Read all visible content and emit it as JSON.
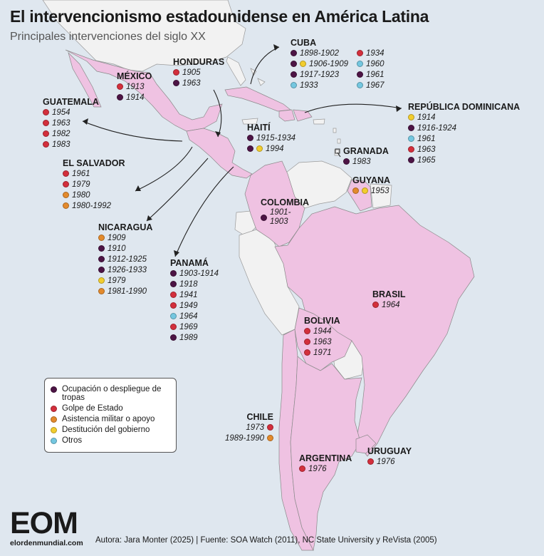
{
  "title": "El intervencionismo estadounidense en América Latina",
  "subtitle": "Principales intervenciones del siglo XX",
  "colors": {
    "ocupacion": "#4d1445",
    "golpe": "#d32f3c",
    "asistencia": "#e38a2c",
    "destitucion": "#f2cd2e",
    "otros": "#74c7e0",
    "land_focus": "#efc2e2",
    "land_other": "#f2f2f2",
    "water": "#dfe7ef"
  },
  "legend": {
    "items": [
      {
        "type": "ocupacion",
        "label": "Ocupación o despliegue de tropas"
      },
      {
        "type": "golpe",
        "label": "Golpe de Estado"
      },
      {
        "type": "asistencia",
        "label": "Asistencia militar o apoyo"
      },
      {
        "type": "destitucion",
        "label": "Destitución del gobierno"
      },
      {
        "type": "otros",
        "label": "Otros"
      }
    ]
  },
  "countries": {
    "mexico": {
      "name": "MÉXICO",
      "events": [
        {
          "t": "1913",
          "type": "golpe"
        },
        {
          "t": "1914",
          "type": "ocupacion"
        }
      ]
    },
    "honduras": {
      "name": "HONDURAS",
      "events": [
        {
          "t": "1905",
          "type": "golpe"
        },
        {
          "t": "1963",
          "type": "ocupacion"
        }
      ]
    },
    "cuba": {
      "name": "CUBA",
      "col1": [
        {
          "t": "1898-1902",
          "type": "ocupacion"
        },
        {
          "t": "1906-1909",
          "types": [
            "ocupacion",
            "destitucion"
          ]
        },
        {
          "t": "1917-1923",
          "type": "ocupacion"
        },
        {
          "t": "1933",
          "type": "otros"
        }
      ],
      "col2": [
        {
          "t": "1934",
          "type": "golpe"
        },
        {
          "t": "1960",
          "type": "otros"
        },
        {
          "t": "1961",
          "type": "ocupacion"
        },
        {
          "t": "1967",
          "type": "otros"
        }
      ]
    },
    "guatemala": {
      "name": "GUATEMALA",
      "events": [
        {
          "t": "1954",
          "type": "golpe"
        },
        {
          "t": "1963",
          "type": "golpe"
        },
        {
          "t": "1982",
          "type": "golpe"
        },
        {
          "t": "1983",
          "type": "golpe"
        }
      ]
    },
    "haiti": {
      "name": "HAITÍ",
      "events": [
        {
          "t": "1915-1934",
          "type": "ocupacion"
        },
        {
          "t": "1994",
          "types": [
            "ocupacion",
            "destitucion"
          ]
        }
      ]
    },
    "dominicana": {
      "name": "REPÚBLICA DOMINICANA",
      "events": [
        {
          "t": "1914",
          "type": "destitucion"
        },
        {
          "t": "1916-1924",
          "type": "ocupacion"
        },
        {
          "t": "1961",
          "type": "otros"
        },
        {
          "t": "1963",
          "type": "golpe"
        },
        {
          "t": "1965",
          "type": "ocupacion"
        }
      ]
    },
    "granada": {
      "name": "GRANADA",
      "events": [
        {
          "t": "1983",
          "type": "ocupacion"
        }
      ]
    },
    "elsalvador": {
      "name": "EL SALVADOR",
      "events": [
        {
          "t": "1961",
          "type": "golpe"
        },
        {
          "t": "1979",
          "type": "golpe"
        },
        {
          "t": "1980",
          "type": "asistencia"
        },
        {
          "t": "1980-1992",
          "type": "asistencia"
        }
      ]
    },
    "guyana": {
      "name": "GUYANA",
      "events": [
        {
          "t": "1953",
          "types": [
            "asistencia",
            "destitucion"
          ]
        }
      ]
    },
    "colombia": {
      "name": "COLOMBIA",
      "events": [
        {
          "t": "1901-\n1903",
          "type": "ocupacion"
        }
      ]
    },
    "nicaragua": {
      "name": "NICARAGUA",
      "events": [
        {
          "t": "1909",
          "type": "asistencia"
        },
        {
          "t": "1910",
          "type": "ocupacion"
        },
        {
          "t": "1912-1925",
          "type": "ocupacion"
        },
        {
          "t": "1926-1933",
          "type": "ocupacion"
        },
        {
          "t": "1979",
          "type": "destitucion"
        },
        {
          "t": "1981-1990",
          "type": "asistencia"
        }
      ]
    },
    "panama": {
      "name": "PANAMÁ",
      "events": [
        {
          "t": "1903-1914",
          "type": "ocupacion"
        },
        {
          "t": "1918",
          "type": "ocupacion"
        },
        {
          "t": "1941",
          "type": "golpe"
        },
        {
          "t": "1949",
          "type": "golpe"
        },
        {
          "t": "1964",
          "type": "otros"
        },
        {
          "t": "1969",
          "type": "golpe"
        },
        {
          "t": "1989",
          "type": "ocupacion"
        }
      ]
    },
    "brasil": {
      "name": "BRASIL",
      "events": [
        {
          "t": "1964",
          "type": "golpe"
        }
      ]
    },
    "bolivia": {
      "name": "BOLIVIA",
      "events": [
        {
          "t": "1944",
          "type": "golpe"
        },
        {
          "t": "1963",
          "type": "golpe"
        },
        {
          "t": "1971",
          "type": "golpe"
        }
      ]
    },
    "chile": {
      "name": "CHILE",
      "events": [
        {
          "t": "1973",
          "type": "golpe"
        },
        {
          "t": "1989-1990",
          "type": "asistencia"
        }
      ]
    },
    "uruguay": {
      "name": "URUGUAY",
      "events": [
        {
          "t": "1976",
          "type": "golpe"
        }
      ]
    },
    "argentina": {
      "name": "ARGENTINA",
      "events": [
        {
          "t": "1976",
          "type": "golpe"
        }
      ]
    }
  },
  "logo": {
    "mark": "EOM",
    "url": "elordenmundial.com"
  },
  "credits": "Autora: Jara Monter (2025) | Fuente: SOA Watch (2011), NC State University y ReVista (2005)"
}
